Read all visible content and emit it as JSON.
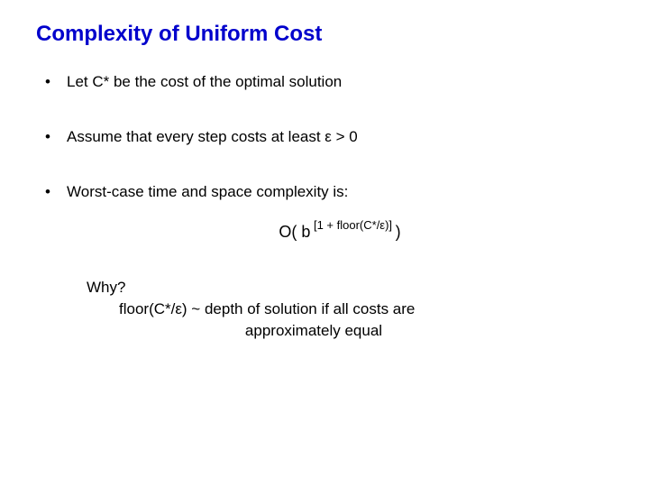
{
  "title_text": "Complexity of Uniform Cost",
  "title_color": "#0000cc",
  "bullets": {
    "b1": "Let C* be the cost of the optimal solution",
    "b2": "Assume that every step costs at least ε > 0",
    "b3": "Worst-case time and space complexity is:"
  },
  "formula": {
    "lead": "O( b",
    "exponent": " [1 + floor(C*/ε)] ",
    "tail": " )"
  },
  "why": {
    "line1": "Why?",
    "line2": "floor(C*/ε) ~ depth of solution if all costs are",
    "line3": "approximately equal"
  }
}
